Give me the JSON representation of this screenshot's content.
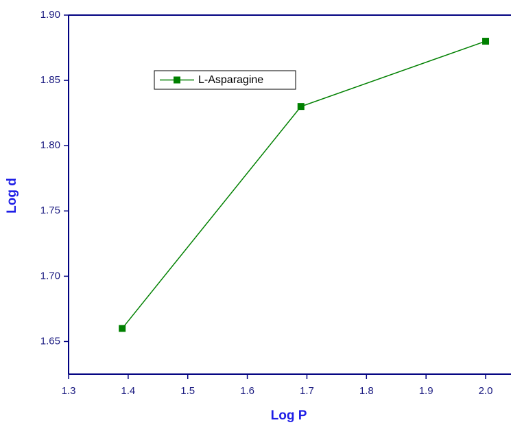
{
  "chart_data": {
    "type": "line",
    "x_label": "Log P",
    "y_label": "Log d",
    "x": [
      1.39,
      1.69,
      2.0
    ],
    "series": [
      {
        "name": "L-Asparagine",
        "color": "#008000",
        "values": [
          1.66,
          1.83,
          1.88
        ]
      }
    ],
    "xlim": [
      1.3,
      2.04
    ],
    "xticks": [
      1.3,
      1.4,
      1.5,
      1.6,
      1.7,
      1.8,
      1.9,
      {
        "value": 2.0,
        "label": "2.0"
      }
    ],
    "ylim": [
      1.625,
      1.9
    ],
    "yticks": [
      1.65,
      {
        "value": 1.7,
        "label": "1.70"
      },
      1.75,
      {
        "value": 1.8,
        "label": "1.80"
      },
      1.85,
      {
        "value": 1.9,
        "label": "1.90"
      }
    ],
    "legend": "upper left",
    "axis_color": "#000080"
  }
}
